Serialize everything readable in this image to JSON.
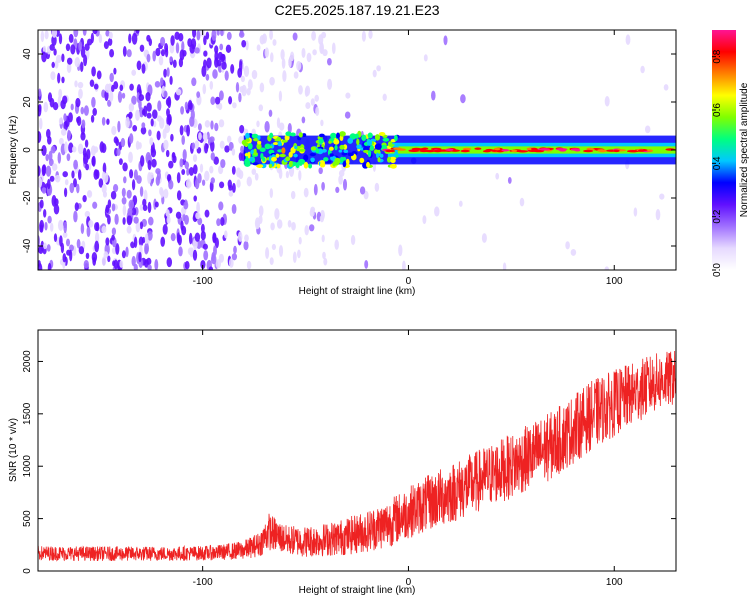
{
  "title": "C2E5.2025.187.19.21.E23",
  "colors": {
    "snr_line": "#ee2222",
    "axis": "#000000",
    "colormap": [
      "#ffffff",
      "#e6d9ff",
      "#a070ff",
      "#6010ff",
      "#0000ff",
      "#00c8ff",
      "#00ff80",
      "#80ff00",
      "#ffff00",
      "#ff8000",
      "#ff0000",
      "#ff1493"
    ]
  },
  "chart_data": [
    {
      "type": "heatmap",
      "title": "C2E5.2025.187.19.21.E23",
      "xlabel": "Height of straight line (km)",
      "ylabel": "Frequency (Hz)",
      "xlim": [
        -180,
        130
      ],
      "ylim": [
        -50,
        50
      ],
      "xticks": [
        -100,
        0,
        100
      ],
      "yticks": [
        -40,
        -20,
        0,
        20,
        40
      ],
      "ridge": {
        "frequency": 0,
        "start_x": -80,
        "end_x": 130,
        "peak_amplitude": 0.9
      },
      "colorbar": {
        "label": "Normalized spectral amplitude",
        "range": [
          0.0,
          0.9
        ],
        "ticks": [
          0.0,
          0.2,
          0.4,
          0.6,
          0.8
        ]
      },
      "grid": false
    },
    {
      "type": "line",
      "xlabel": "Height of straight line (km)",
      "ylabel": "SNR (10 * v/v)",
      "xlim": [
        -180,
        130
      ],
      "ylim": [
        0,
        2300
      ],
      "xticks": [
        -100,
        0,
        100
      ],
      "yticks": [
        0,
        500,
        1000,
        1500,
        2000
      ],
      "series": [
        {
          "envelope_x": [
            -180,
            -150,
            -120,
            -100,
            -90,
            -80,
            -72,
            -68,
            -60,
            -50,
            -40,
            -30,
            -20,
            -10,
            0,
            10,
            20,
            30,
            40,
            50,
            60,
            70,
            80,
            90,
            100,
            110,
            120,
            130
          ],
          "envelope_median": [
            170,
            165,
            165,
            170,
            180,
            200,
            260,
            380,
            300,
            280,
            300,
            330,
            380,
            450,
            560,
            650,
            740,
            820,
            920,
            1000,
            1100,
            1200,
            1350,
            1500,
            1600,
            1700,
            1800,
            1850
          ],
          "envelope_spread": [
            70,
            70,
            70,
            70,
            75,
            90,
            120,
            180,
            140,
            150,
            160,
            180,
            200,
            230,
            250,
            270,
            290,
            300,
            300,
            310,
            320,
            330,
            330,
            330,
            320,
            300,
            280,
            260
          ]
        }
      ],
      "grid": false
    }
  ]
}
